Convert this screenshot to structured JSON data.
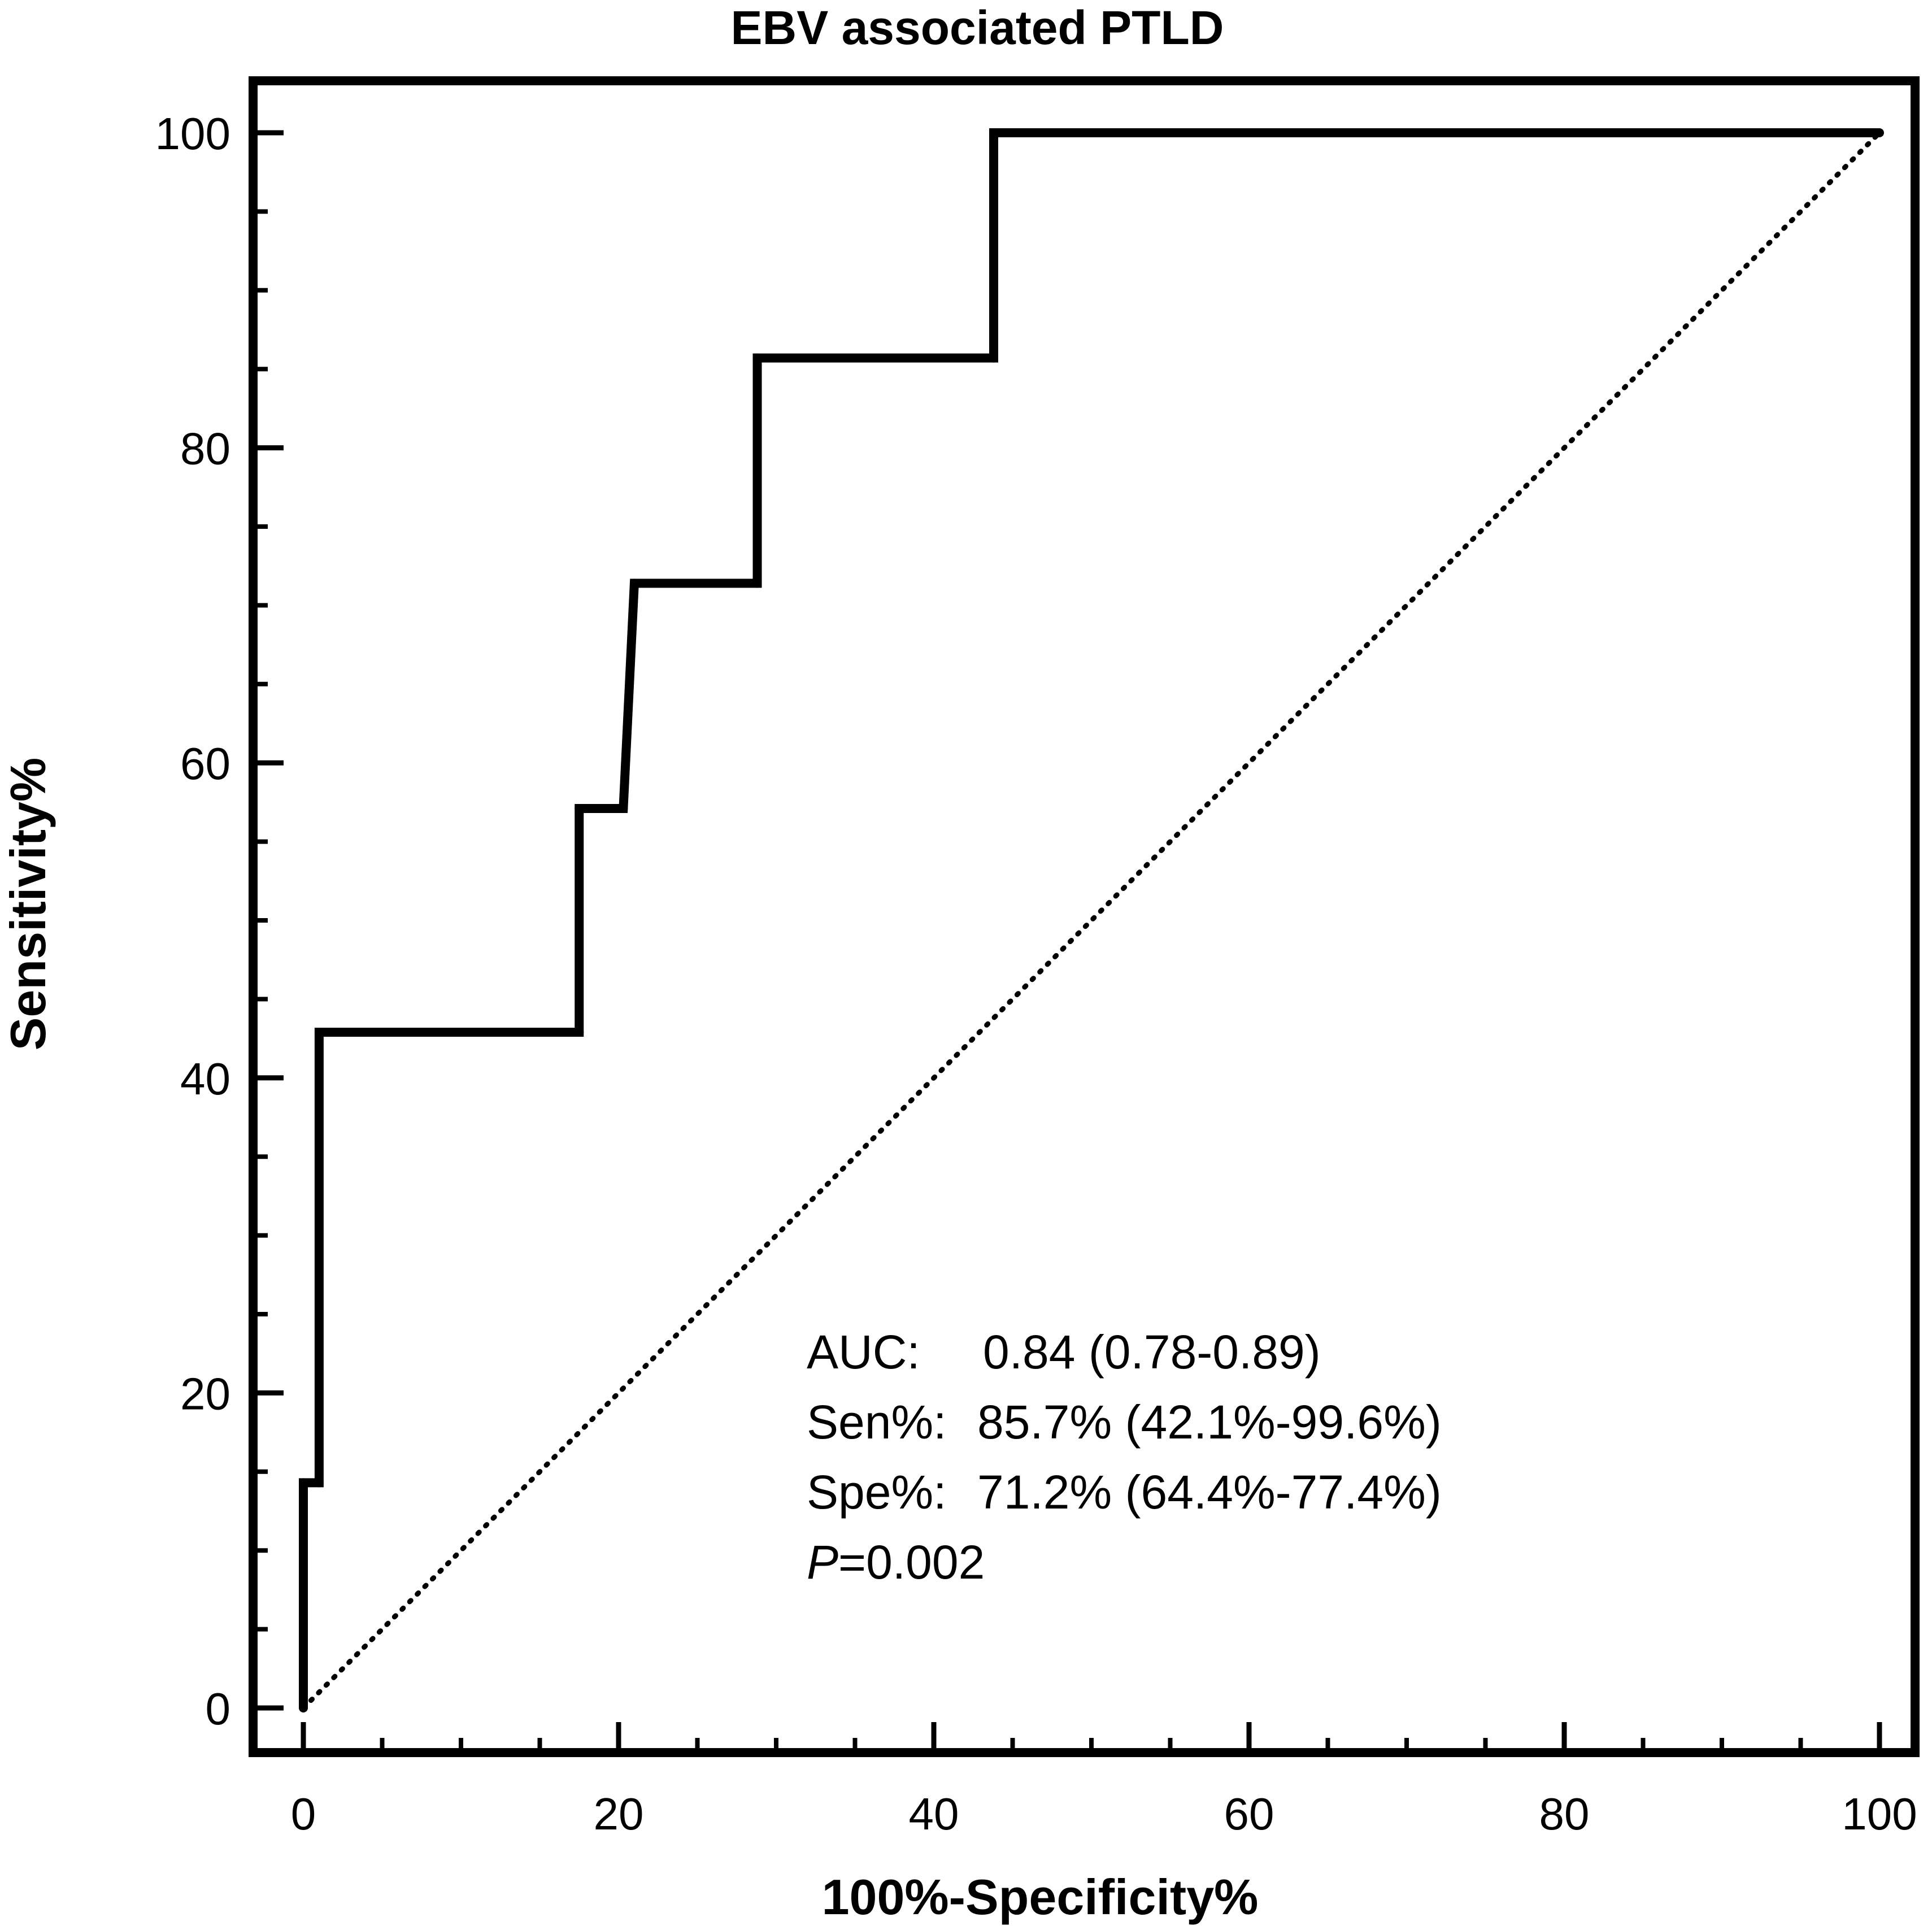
{
  "chart_data": {
    "type": "line",
    "title": "EBV associated PTLD",
    "xlabel": "100%-Specificity%",
    "ylabel": "Sensitivity%",
    "xlim": [
      0,
      100
    ],
    "ylim": [
      0,
      100
    ],
    "x_ticks": [
      0,
      20,
      40,
      60,
      80,
      100
    ],
    "y_ticks": [
      0,
      20,
      40,
      60,
      80,
      100
    ],
    "x_minor_step": 5,
    "y_minor_step": 5,
    "grid": false,
    "series": [
      {
        "name": "ROC curve",
        "style": "solid",
        "points": [
          [
            0,
            0
          ],
          [
            0,
            14.3
          ],
          [
            1,
            14.3
          ],
          [
            1,
            42.9
          ],
          [
            17.5,
            42.9
          ],
          [
            17.5,
            57.1
          ],
          [
            20.3,
            57.1
          ],
          [
            21,
            71.4
          ],
          [
            28.8,
            71.4
          ],
          [
            28.8,
            85.7
          ],
          [
            43.8,
            85.7
          ],
          [
            43.8,
            100
          ],
          [
            100,
            100
          ]
        ]
      },
      {
        "name": "Reference line",
        "style": "dotted",
        "points": [
          [
            0,
            0
          ],
          [
            100,
            100
          ]
        ]
      }
    ],
    "annotations": {
      "auc_label": "AUC:",
      "auc_value": "0.84 (0.78-0.89)",
      "sen_label": "Sen%:",
      "sen_value": "85.7% (42.1%-99.6%)",
      "spe_label": "Spe%:",
      "spe_value": "71.2% (64.4%-77.4%)",
      "p_letter": "P",
      "p_value": "=0.002"
    }
  }
}
